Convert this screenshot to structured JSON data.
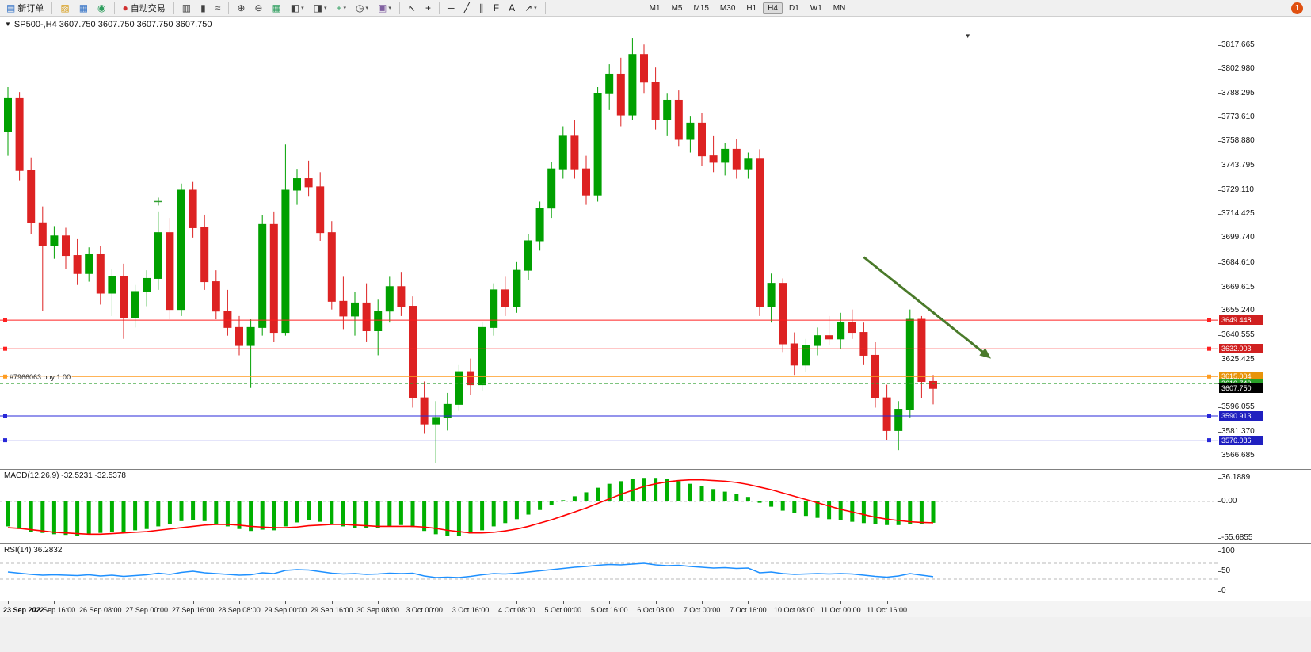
{
  "toolbar": {
    "groups": [
      {
        "items": [
          {
            "name": "new-order-button",
            "glyph": "▤",
            "glyph_color": "#3c78c8",
            "label": "新订单"
          }
        ]
      },
      {
        "items": [
          {
            "name": "charts-profile-icon",
            "glyph": "▨",
            "glyph_color": "#d8a020"
          },
          {
            "name": "market-watch-icon",
            "glyph": "▦",
            "glyph_color": "#3c78c8"
          },
          {
            "name": "navigator-icon",
            "glyph": "◉",
            "glyph_color": "#2e9e5e"
          }
        ]
      },
      {
        "items": [
          {
            "name": "autotrading-button",
            "glyph": "●",
            "glyph_color": "#d03030",
            "label": "自动交易"
          }
        ]
      },
      {
        "items": [
          {
            "name": "bar-chart-icon",
            "glyph": "▥",
            "glyph_color": "#404040"
          },
          {
            "name": "candlestick-icon",
            "glyph": "▮",
            "glyph_color": "#404040"
          },
          {
            "name": "line-chart-icon",
            "glyph": "≈",
            "glyph_color": "#404040"
          }
        ]
      },
      {
        "items": [
          {
            "name": "zoom-in-icon",
            "glyph": "⊕",
            "glyph_color": "#404040"
          },
          {
            "name": "zoom-out-icon",
            "glyph": "⊖",
            "glyph_color": "#404040"
          },
          {
            "name": "tile-windows-icon",
            "glyph": "▦",
            "glyph_color": "#2e9e5e"
          },
          {
            "name": "cascade-windows-icon",
            "glyph": "◧",
            "glyph_color": "#404040",
            "caret": true
          },
          {
            "name": "arrange-windows-icon",
            "glyph": "◨",
            "glyph_color": "#404040",
            "caret": true
          },
          {
            "name": "add-indicator-icon",
            "glyph": "+",
            "glyph_color": "#2e9e5e",
            "caret": true
          },
          {
            "name": "period-icon",
            "glyph": "◷",
            "glyph_color": "#404040",
            "caret": true
          },
          {
            "name": "template-icon",
            "glyph": "▣",
            "glyph_color": "#8060a0",
            "caret": true
          }
        ]
      },
      {
        "items": [
          {
            "name": "cursor-icon",
            "glyph": "↖",
            "glyph_color": "#202020"
          },
          {
            "name": "crosshair-icon",
            "glyph": "+",
            "glyph_color": "#202020"
          }
        ]
      },
      {
        "items": [
          {
            "name": "horizontal-line-icon",
            "glyph": "─",
            "glyph_color": "#202020"
          },
          {
            "name": "trendline-icon",
            "glyph": "╱",
            "glyph_color": "#202020"
          },
          {
            "name": "equidistant-channel-icon",
            "glyph": "∥",
            "glyph_color": "#202020"
          },
          {
            "name": "fibonacci-icon",
            "glyph": "F",
            "glyph_color": "#202020"
          },
          {
            "name": "text-tool-icon",
            "glyph": "A",
            "glyph_color": "#202020"
          },
          {
            "name": "arrows-tool-icon",
            "glyph": "↗",
            "glyph_color": "#202020",
            "caret": true
          }
        ]
      }
    ],
    "timeframes": [
      "M1",
      "M5",
      "M15",
      "M30",
      "H1",
      "H4",
      "D1",
      "W1",
      "MN"
    ],
    "active_timeframe": "H4",
    "notification_badge": "1"
  },
  "chart_header": {
    "title": "SP500-,H4  3607.750 3607.750 3607.750 3607.750"
  },
  "position_label": "#7966063 buy 1.00",
  "chart_data": {
    "type": "candlestick",
    "symbol": "SP500-",
    "period": "H4",
    "price_axis_labels": [
      "3817.665",
      "3802.980",
      "3788.295",
      "3773.610",
      "3758.880",
      "3743.795",
      "3729.110",
      "3714.425",
      "3699.740",
      "3684.610",
      "3669.615",
      "3655.240",
      "3640.555",
      "3625.425",
      "3610.740",
      "3596.055",
      "3581.370",
      "3566.685"
    ],
    "badges": [
      {
        "price": 3649.448,
        "color": "#d02020"
      },
      {
        "price": 3632.003,
        "color": "#d02020"
      },
      {
        "price": 3615.004,
        "color": "#e8940a"
      },
      {
        "price": 3610.74,
        "color": "#28a028"
      },
      {
        "price": 3607.75,
        "color": "#000000"
      },
      {
        "price": 3590.913,
        "color": "#2020c0"
      },
      {
        "price": 3576.086,
        "color": "#2020c0"
      }
    ],
    "hlines": [
      {
        "price": 3649.448,
        "color": "#ff2020",
        "style": "solid",
        "handles": true
      },
      {
        "price": 3632.003,
        "color": "#ff2020",
        "style": "solid",
        "handles": true
      },
      {
        "price": 3615.004,
        "color": "#ff9c20",
        "style": "solid",
        "handles": true
      },
      {
        "price": 3610.74,
        "color": "#30a030",
        "style": "dashed",
        "handles": false
      },
      {
        "price": 3590.913,
        "color": "#2828d8",
        "style": "solid",
        "handles": true
      },
      {
        "price": 3576.086,
        "color": "#2828d8",
        "style": "solid",
        "handles": true
      }
    ],
    "annotations": {
      "arrow": {
        "from_bar": 74,
        "from_price": 3688,
        "to_bar": 85,
        "to_price": 3626,
        "color": "#4a7a2a"
      },
      "cross": {
        "bar": 13,
        "price": 3722,
        "color": "#30a030"
      },
      "shift_marker_bar": 83
    },
    "time_labels": [
      "23 Sep 2022",
      "23 Sep 16:00",
      "26 Sep 08:00",
      "27 Sep 00:00",
      "27 Sep 16:00",
      "28 Sep 08:00",
      "29 Sep 00:00",
      "29 Sep 16:00",
      "30 Sep 08:00",
      "3 Oct 00:00",
      "3 Oct 16:00",
      "4 Oct 08:00",
      "5 Oct 00:00",
      "5 Oct 16:00",
      "6 Oct 08:00",
      "7 Oct 00:00",
      "7 Oct 16:00",
      "10 Oct 08:00",
      "11 Oct 00:00",
      "11 Oct 16:00"
    ],
    "label_every": 4,
    "ohlc": [
      [
        3765,
        3792,
        3750,
        3785
      ],
      [
        3785,
        3789,
        3735,
        3741
      ],
      [
        3741,
        3749,
        3702,
        3709
      ],
      [
        3709,
        3719,
        3655,
        3695
      ],
      [
        3695,
        3707,
        3687,
        3701
      ],
      [
        3701,
        3706,
        3681,
        3689
      ],
      [
        3689,
        3699,
        3671,
        3678
      ],
      [
        3678,
        3694,
        3673,
        3690
      ],
      [
        3690,
        3695,
        3659,
        3666
      ],
      [
        3666,
        3681,
        3652,
        3676
      ],
      [
        3676,
        3684,
        3638,
        3651
      ],
      [
        3651,
        3671,
        3645,
        3667
      ],
      [
        3667,
        3680,
        3658,
        3675
      ],
      [
        3675,
        3716,
        3668,
        3703
      ],
      [
        3703,
        3712,
        3650,
        3656
      ],
      [
        3656,
        3733,
        3652,
        3729
      ],
      [
        3729,
        3734,
        3700,
        3706
      ],
      [
        3706,
        3714,
        3668,
        3673
      ],
      [
        3673,
        3680,
        3650,
        3655
      ],
      [
        3655,
        3668,
        3640,
        3645
      ],
      [
        3645,
        3652,
        3628,
        3634
      ],
      [
        3634,
        3650,
        3608,
        3645
      ],
      [
        3645,
        3714,
        3640,
        3708
      ],
      [
        3708,
        3716,
        3636,
        3642
      ],
      [
        3642,
        3757,
        3640,
        3729
      ],
      [
        3729,
        3742,
        3720,
        3736
      ],
      [
        3736,
        3747,
        3725,
        3731
      ],
      [
        3731,
        3740,
        3698,
        3703
      ],
      [
        3703,
        3710,
        3656,
        3661
      ],
      [
        3661,
        3676,
        3644,
        3652
      ],
      [
        3652,
        3667,
        3640,
        3660
      ],
      [
        3660,
        3672,
        3636,
        3643
      ],
      [
        3643,
        3662,
        3628,
        3655
      ],
      [
        3655,
        3676,
        3648,
        3670
      ],
      [
        3670,
        3679,
        3652,
        3658
      ],
      [
        3658,
        3664,
        3596,
        3602
      ],
      [
        3602,
        3612,
        3580,
        3586
      ],
      [
        3586,
        3600,
        3562,
        3590
      ],
      [
        3590,
        3605,
        3582,
        3598
      ],
      [
        3598,
        3622,
        3594,
        3618
      ],
      [
        3618,
        3626,
        3604,
        3610
      ],
      [
        3610,
        3648,
        3606,
        3645
      ],
      [
        3645,
        3672,
        3640,
        3668
      ],
      [
        3668,
        3676,
        3652,
        3658
      ],
      [
        3658,
        3685,
        3654,
        3680
      ],
      [
        3680,
        3702,
        3674,
        3698
      ],
      [
        3698,
        3722,
        3692,
        3718
      ],
      [
        3718,
        3746,
        3712,
        3742
      ],
      [
        3742,
        3768,
        3736,
        3762
      ],
      [
        3762,
        3772,
        3736,
        3742
      ],
      [
        3742,
        3750,
        3720,
        3726
      ],
      [
        3726,
        3792,
        3722,
        3788
      ],
      [
        3788,
        3806,
        3778,
        3800
      ],
      [
        3800,
        3810,
        3768,
        3775
      ],
      [
        3775,
        3822,
        3772,
        3812
      ],
      [
        3812,
        3818,
        3788,
        3795
      ],
      [
        3795,
        3804,
        3766,
        3772
      ],
      [
        3772,
        3788,
        3762,
        3784
      ],
      [
        3784,
        3790,
        3756,
        3760
      ],
      [
        3760,
        3774,
        3752,
        3770
      ],
      [
        3770,
        3776,
        3744,
        3750
      ],
      [
        3750,
        3762,
        3740,
        3746
      ],
      [
        3746,
        3758,
        3738,
        3754
      ],
      [
        3754,
        3760,
        3736,
        3742
      ],
      [
        3742,
        3752,
        3736,
        3748
      ],
      [
        3748,
        3754,
        3652,
        3658
      ],
      [
        3658,
        3678,
        3648,
        3672
      ],
      [
        3672,
        3675,
        3630,
        3635
      ],
      [
        3635,
        3642,
        3616,
        3622
      ],
      [
        3622,
        3638,
        3618,
        3634
      ],
      [
        3634,
        3645,
        3628,
        3640
      ],
      [
        3640,
        3652,
        3634,
        3638
      ],
      [
        3638,
        3654,
        3632,
        3648
      ],
      [
        3648,
        3656,
        3638,
        3642
      ],
      [
        3642,
        3648,
        3622,
        3628
      ],
      [
        3628,
        3636,
        3596,
        3602
      ],
      [
        3602,
        3610,
        3576,
        3582
      ],
      [
        3582,
        3600,
        3570,
        3595
      ],
      [
        3595,
        3656,
        3590,
        3650
      ],
      [
        3650,
        3652,
        3602,
        3612
      ],
      [
        3612,
        3616,
        3598,
        3607.75
      ]
    ],
    "macd": {
      "header": "MACD(12,26,9) -32.5231 -32.5378",
      "axis": [
        {
          "label": "36.1889",
          "value": 36.1889
        },
        {
          "label": "0.00",
          "value": 0
        },
        {
          "label": "-55.6855",
          "value": -55.6855
        }
      ],
      "histogram": [
        -38,
        -42,
        -46,
        -48,
        -50,
        -51,
        -52,
        -50,
        -48,
        -47,
        -46,
        -44,
        -42,
        -38,
        -34,
        -30,
        -28,
        -30,
        -34,
        -38,
        -42,
        -45,
        -43,
        -44,
        -38,
        -32,
        -29,
        -31,
        -35,
        -38,
        -40,
        -41,
        -40,
        -38,
        -36,
        -39,
        -45,
        -50,
        -53,
        -52,
        -49,
        -44,
        -38,
        -33,
        -27,
        -20,
        -13,
        -6,
        2,
        8,
        14,
        21,
        27,
        31,
        34,
        36,
        36,
        34,
        31,
        27,
        23,
        19,
        15,
        11,
        7,
        -2,
        -8,
        -14,
        -18,
        -22,
        -25,
        -27,
        -29,
        -31,
        -33,
        -35,
        -36,
        -36,
        -35,
        -34,
        -32.5
      ],
      "signal": [
        -40,
        -41,
        -43,
        -45,
        -47,
        -48,
        -49,
        -50,
        -50,
        -49,
        -48,
        -47,
        -46,
        -44,
        -42,
        -40,
        -38,
        -36,
        -35,
        -35,
        -36,
        -38,
        -39,
        -40,
        -40,
        -39,
        -37,
        -36,
        -35,
        -35,
        -36,
        -37,
        -38,
        -38,
        -38,
        -38,
        -39,
        -41,
        -44,
        -46,
        -48,
        -48,
        -47,
        -45,
        -42,
        -38,
        -33,
        -28,
        -22,
        -16,
        -10,
        -3,
        4,
        11,
        17,
        23,
        27,
        30,
        32,
        33,
        33,
        32,
        31,
        29,
        26,
        22,
        18,
        13,
        8,
        3,
        -2,
        -7,
        -12,
        -16,
        -20,
        -24,
        -27,
        -29,
        -31,
        -32,
        -32.5
      ]
    },
    "rsi": {
      "header": "RSI(14) 36.2832",
      "axis": [
        {
          "label": "100",
          "value": 100
        },
        {
          "label": "50",
          "value": 50
        },
        {
          "label": "0",
          "value": 0
        }
      ],
      "levels": [
        70,
        30
      ],
      "values": [
        48,
        45,
        42,
        40,
        41,
        40,
        39,
        41,
        38,
        40,
        37,
        39,
        41,
        45,
        42,
        47,
        50,
        46,
        44,
        42,
        40,
        41,
        46,
        44,
        52,
        54,
        53,
        49,
        45,
        43,
        44,
        42,
        43,
        45,
        44,
        45,
        38,
        34,
        35,
        34,
        37,
        41,
        44,
        43,
        45,
        48,
        51,
        54,
        57,
        60,
        62,
        65,
        67,
        66,
        68,
        70,
        66,
        64,
        65,
        62,
        60,
        58,
        59,
        57,
        58,
        46,
        48,
        44,
        42,
        43,
        44,
        43,
        44,
        43,
        40,
        37,
        35,
        38,
        44,
        40,
        36.28
      ]
    },
    "colors": {
      "up": "#00a000",
      "down": "#dd2222",
      "macd_histogram": "#00b000",
      "macd_signal": "#ff0000",
      "rsi_line": "#1e90ff",
      "background": "#ffffff"
    }
  }
}
